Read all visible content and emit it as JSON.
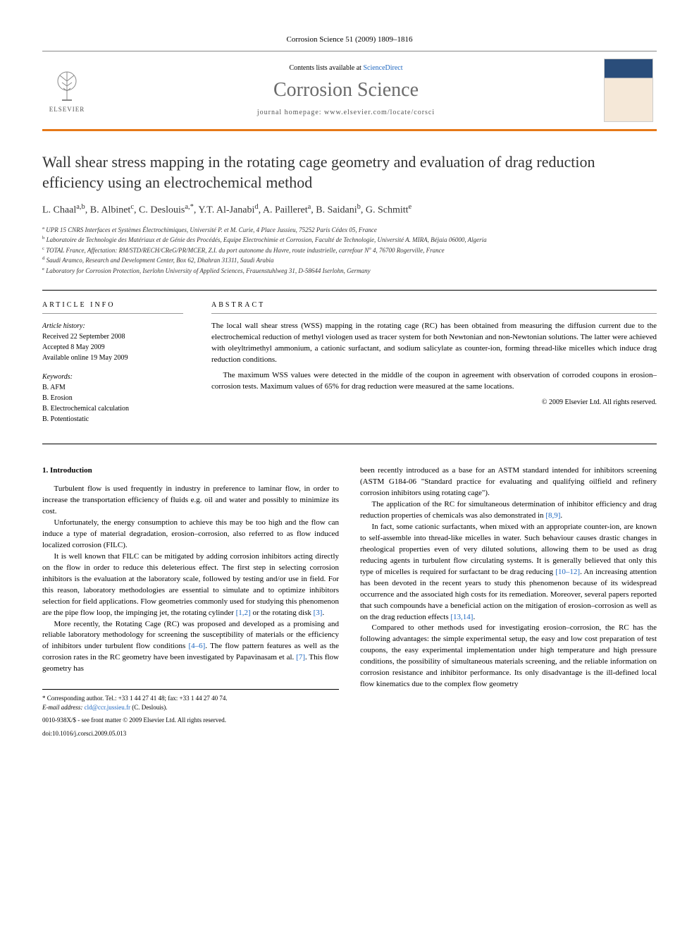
{
  "journal_header_line": "Corrosion Science 51 (2009) 1809–1816",
  "header": {
    "contents_prefix": "Contents lists available at ",
    "contents_link": "ScienceDirect",
    "journal_name": "Corrosion Science",
    "homepage_prefix": "journal homepage: ",
    "homepage_url": "www.elsevier.com/locate/corsci",
    "elsevier_label": "ELSEVIER"
  },
  "title": "Wall shear stress mapping in the rotating cage geometry and evaluation of drag reduction efficiency using an electrochemical method",
  "authors_html": "L. Chaal<sup>a,b</sup>, B. Albinet<sup>c</sup>, C. Deslouis<sup>a,*</sup>, Y.T. Al-Janabi<sup>d</sup>, A. Pailleret<sup>a</sup>, B. Saidani<sup>b</sup>, G. Schmitt<sup>e</sup>",
  "affiliations": [
    "<sup>a</sup> UPR 15 CNRS Interfaces et Systèmes Électrochimiques, Université P. et M. Curie, 4 Place Jussieu, 75252 Paris Cédex 05, France",
    "<sup>b</sup> Laboratoire de Technologie des Matériaux et de Génie des Procédés, Equipe Electrochimie et Corrosion, Faculté de Technologie, Université A. MIRA, Béjaia 06000, Algeria",
    "<sup>c</sup> TOTAL France, Affectation: RM/STD/RECH/CReG/PR/MCER, Z.I. du port autonome du Havre, route industrielle, carrefour N<sup>o</sup> 4, 76700 Rogerville, France",
    "<sup>d</sup> Saudi Aramco, Research and Development Center, Box 62, Dhahran 31311, Saudi Arabia",
    "<sup>e</sup> Laboratory for Corrosion Protection, Iserlohn University of Applied Sciences, Frauenstuhlweg 31, D-58644 Iserlohn, Germany"
  ],
  "article_info": {
    "heading": "ARTICLE INFO",
    "history_label": "Article history:",
    "history": [
      "Received 22 September 2008",
      "Accepted 8 May 2009",
      "Available online 19 May 2009"
    ],
    "keywords_label": "Keywords:",
    "keywords": [
      "B. AFM",
      "B. Erosion",
      "B. Electrochemical calculation",
      "B. Potentiostatic"
    ]
  },
  "abstract": {
    "heading": "ABSTRACT",
    "paragraphs": [
      "The local wall shear stress (WSS) mapping in the rotating cage (RC) has been obtained from measuring the diffusion current due to the electrochemical reduction of methyl viologen used as tracer system for both Newtonian and non-Newtonian solutions. The latter were achieved with oleyltrimethyl ammonium, a cationic surfactant, and sodium salicylate as counter-ion, forming thread-like micelles which induce drag reduction conditions.",
      "The maximum WSS values were detected in the middle of the coupon in agreement with observation of corroded coupons in erosion–corrosion tests. Maximum values of 65% for drag reduction were measured at the same locations."
    ],
    "copyright": "© 2009 Elsevier Ltd. All rights reserved."
  },
  "body": {
    "section_heading": "1. Introduction",
    "col1_paragraphs": [
      "Turbulent flow is used frequently in industry in preference to laminar flow, in order to increase the transportation efficiency of fluids e.g. oil and water and possibly to minimize its cost.",
      "Unfortunately, the energy consumption to achieve this may be too high and the flow can induce a type of material degradation, erosion–corrosion, also referred to as flow induced localized corrosion (FILC).",
      "It is well known that FILC can be mitigated by adding corrosion inhibitors acting directly on the flow in order to reduce this deleterious effect. The first step in selecting corrosion inhibitors is the evaluation at the laboratory scale, followed by testing and/or use in field. For this reason, laboratory methodologies are essential to simulate and to optimize inhibitors selection for field applications. Flow geometries commonly used for studying this phenomenon are the pipe flow loop, the impinging jet, the rotating cylinder <span class=\"ref-link\">[1,2]</span> or the rotating disk <span class=\"ref-link\">[3]</span>.",
      "More recently, the Rotating Cage (RC) was proposed and developed as a promising and reliable laboratory methodology for screening the susceptibility of materials or the efficiency of inhibitors under turbulent flow conditions <span class=\"ref-link\">[4–6]</span>. The flow pattern features as well as the corrosion rates in the RC geometry have been investigated by Papavinasam et al. <span class=\"ref-link\">[7]</span>. This flow geometry has"
    ],
    "col2_paragraphs": [
      "been recently introduced as a base for an ASTM standard intended for inhibitors screening (ASTM G184-06 \"Standard practice for evaluating and qualifying oilfield and refinery corrosion inhibitors using rotating cage\").",
      "The application of the RC for simultaneous determination of inhibitor efficiency and drag reduction properties of chemicals was also demonstrated in <span class=\"ref-link\">[8,9]</span>.",
      "In fact, some cationic surfactants, when mixed with an appropriate counter-ion, are known to self-assemble into thread-like micelles in water. Such behaviour causes drastic changes in rheological properties even of very diluted solutions, allowing them to be used as drag reducing agents in turbulent flow circulating systems. It is generally believed that only this type of micelles is required for surfactant to be drag reducing <span class=\"ref-link\">[10–12]</span>. An increasing attention has been devoted in the recent years to study this phenomenon because of its widespread occurrence and the associated high costs for its remediation. Moreover, several papers reported that such compounds have a beneficial action on the mitigation of erosion–corrosion as well as on the drag reduction effects <span class=\"ref-link\">[13,14]</span>.",
      "Compared to other methods used for investigating erosion–corrosion, the RC has the following advantages: the simple experimental setup, the easy and low cost preparation of test coupons, the easy experimental implementation under high temperature and high pressure conditions, the possibility of simultaneous materials screening, and the reliable information on corrosion resistance and inhibitor performance. Its only disadvantage is the ill-defined local flow kinematics due to the complex flow geometry"
    ]
  },
  "footnote": {
    "corr_line": "* Corresponding author. Tel.: +33 1 44 27 41 48; fax: +33 1 44 27 40 74.",
    "email_label": "E-mail address:",
    "email": "cld@ccr.jussieu.fr",
    "email_name": "(C. Deslouis)."
  },
  "footer": {
    "line1": "0010-938X/$ - see front matter © 2009 Elsevier Ltd. All rights reserved.",
    "line2": "doi:10.1016/j.corsci.2009.05.013"
  },
  "colors": {
    "orange_bar": "#e67817",
    "link_blue": "#2068c0",
    "journal_gray": "#6b6b6b"
  }
}
